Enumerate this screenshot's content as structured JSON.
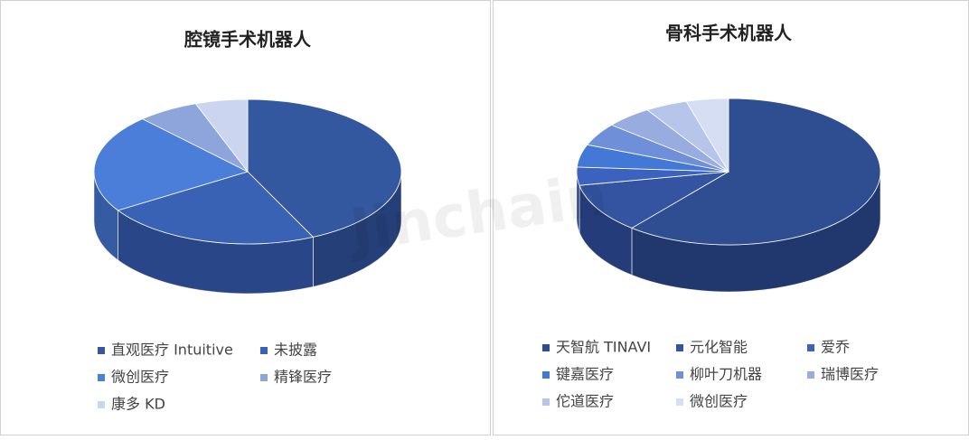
{
  "watermark": "Jinchain",
  "chart_data": [
    {
      "type": "pie",
      "title": "腔镜手术机器人",
      "categories": [
        "直观医疗 Intuitive",
        "未披露",
        "微创医疗",
        "精锋医疗",
        "康多 KD"
      ],
      "values": [
        43,
        23,
        22,
        6.5,
        5.5
      ],
      "colors": [
        "#34589f",
        "#3a62b4",
        "#4a7ed8",
        "#8ea5dc",
        "#cbd5f0"
      ]
    },
    {
      "type": "pie",
      "title": "骨科手术机器人",
      "categories": [
        "天智航 TINAVI",
        "元化智能",
        "爱乔",
        "键嘉医疗",
        "柳叶刀机器",
        "瑞博医疗",
        "佗道医疗",
        "微创医疗"
      ],
      "values": [
        61,
        11,
        4,
        5,
        5,
        5,
        4.5,
        4.5
      ],
      "colors": [
        "#2f4e92",
        "#3454a2",
        "#3a62be",
        "#4478d6",
        "#6f8fd8",
        "#98acdf",
        "#b7c5ea",
        "#d6def4"
      ]
    }
  ]
}
